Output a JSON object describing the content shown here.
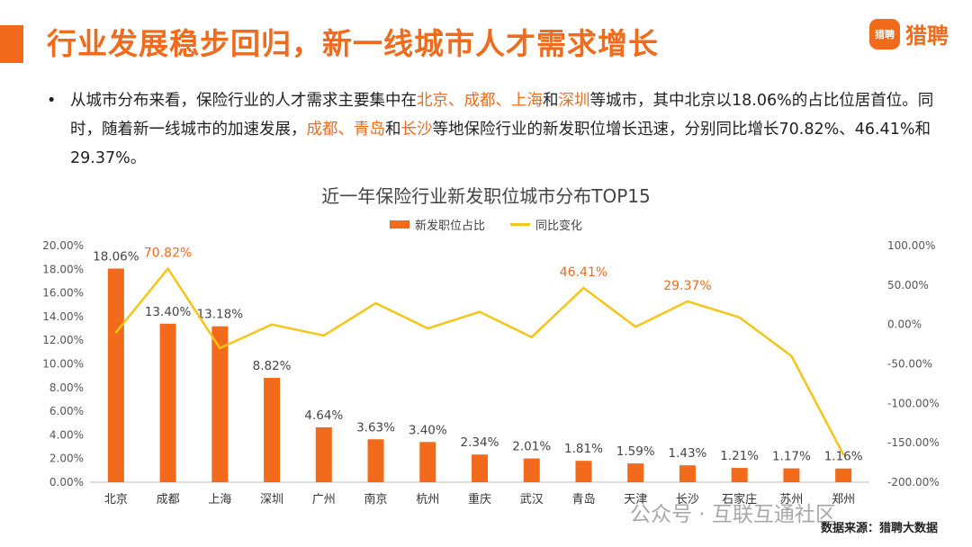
{
  "header": {
    "title": "行业发展稳步回归，新一线城市人才需求增长",
    "logo_badge": "猎聘",
    "logo_text": "猎聘"
  },
  "bullet": {
    "dot": "•",
    "segments": [
      {
        "text": "从城市分布来看，保险行业的人才需求主要集中在",
        "hl": false
      },
      {
        "text": "北京、成都、上海",
        "hl": true
      },
      {
        "text": "和",
        "hl": false
      },
      {
        "text": "深圳",
        "hl": true
      },
      {
        "text": "等城市，其中北京以18.06%的占比位居首位。同时，随着新一线城市的加速发展，",
        "hl": false
      },
      {
        "text": "成都、青岛",
        "hl": true
      },
      {
        "text": "和",
        "hl": false
      },
      {
        "text": "长沙",
        "hl": true
      },
      {
        "text": "等地保险行业的新发职位增长迅速，分别同比增长70.82%、46.41%和29.37%。",
        "hl": false
      }
    ]
  },
  "colors": {
    "accent": "#f26a1b",
    "line": "#f5c518",
    "axis": "#bbbbbb",
    "tick": "#555555"
  },
  "chart_data": {
    "type": "bar",
    "title": "近一年保险行业新发职位城市分布TOP15",
    "legend": [
      "新发职位占比",
      "同比变化"
    ],
    "categories": [
      "北京",
      "成都",
      "上海",
      "深圳",
      "广州",
      "南京",
      "杭州",
      "重庆",
      "武汉",
      "青岛",
      "天津",
      "长沙",
      "石家庄",
      "苏州",
      "郑州"
    ],
    "series": [
      {
        "name": "新发职位占比",
        "type": "bar",
        "axis": "left",
        "values": [
          18.06,
          13.4,
          13.18,
          8.82,
          4.64,
          3.63,
          3.4,
          2.34,
          2.01,
          1.81,
          1.59,
          1.43,
          1.21,
          1.17,
          1.16
        ],
        "labels": [
          "18.06%",
          "13.40%",
          "13.18%",
          "8.82%",
          "4.64%",
          "3.63%",
          "3.40%",
          "2.34%",
          "2.01%",
          "1.81%",
          "1.59%",
          "1.43%",
          "1.21%",
          "1.17%",
          "1.16%"
        ]
      },
      {
        "name": "同比变化",
        "type": "line",
        "axis": "right",
        "values": [
          -10,
          70.82,
          -30,
          0,
          -14,
          27,
          -5,
          16,
          -16,
          46.41,
          -3,
          29.37,
          9,
          -40,
          -165
        ]
      }
    ],
    "line_labels": [
      {
        "index": 1,
        "text": "70.82%"
      },
      {
        "index": 9,
        "text": "46.41%"
      },
      {
        "index": 11,
        "text": "29.37%"
      }
    ],
    "y_left": {
      "min": 0,
      "max": 20,
      "step": 2,
      "ticks": [
        "0.00%",
        "2.00%",
        "4.00%",
        "6.00%",
        "8.00%",
        "10.00%",
        "12.00%",
        "14.00%",
        "16.00%",
        "18.00%",
        "20.00%"
      ]
    },
    "y_right": {
      "min": -200,
      "max": 100,
      "step": 50,
      "ticks": [
        "-200.00%",
        "-150.00%",
        "-100.00%",
        "-50.00%",
        "0.00%",
        "50.00%",
        "100.00%"
      ]
    }
  },
  "footer": {
    "watermark": "公众号 · 互联互通社区",
    "source": "数据来源：猎聘大数据"
  }
}
